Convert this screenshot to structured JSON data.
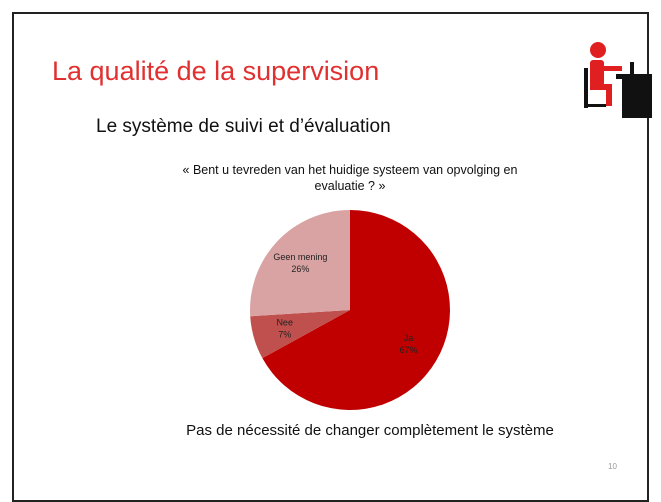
{
  "slide": {
    "title": "La qualité de la supervision",
    "subtitle": "Le système de suivi et d’évaluation",
    "conclusion": "Pas de nécessité de changer complètement le système",
    "page_number": "10"
  },
  "chart_data": {
    "type": "pie",
    "title": "« Bent u tevreden van het huidige systeem van opvolging en evaluatie ? »",
    "categories": [
      "Ja",
      "Nee",
      "Geen mening"
    ],
    "values": [
      67,
      7,
      26
    ],
    "value_labels": [
      "67%",
      "7%",
      "26%"
    ],
    "colors": [
      "#c00000",
      "#c0504d",
      "#d9a3a3"
    ]
  }
}
